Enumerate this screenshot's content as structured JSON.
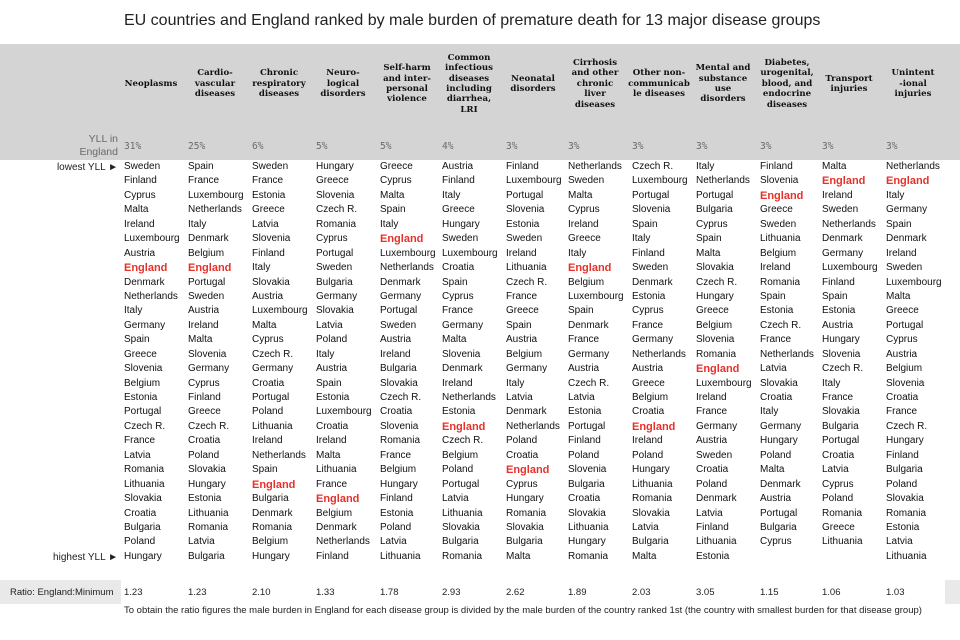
{
  "title": "EU countries and England ranked by male burden of premature death for 13 major disease groups",
  "yll_label_line1": "YLL in",
  "yll_label_line2": "England",
  "lowest_label": "lowest YLL ►",
  "highest_label": "highest YLL ►",
  "ratio_label": "Ratio: England:Minimum",
  "footnote": "To obtain the ratio figures the male burden in England for each disease group is divided by the male burden of the country ranked 1st (the country with smallest burden for that disease group)",
  "highlight_country": "England",
  "columns": [
    {
      "header": [
        "Neoplasms"
      ],
      "yll": "31%",
      "ratio": "1.23",
      "countries": [
        "Sweden",
        "Finland",
        "Cyprus",
        "Malta",
        "Ireland",
        "Luxembourg",
        "Austria",
        "England",
        "Denmark",
        "Netherlands",
        "Italy",
        "Germany",
        "Spain",
        "Greece",
        "Slovenia",
        "Belgium",
        "Estonia",
        "Portugal",
        "Czech R.",
        "France",
        "Latvia",
        "Romania",
        "Lithuania",
        "Slovakia",
        "Croatia",
        "Bulgaria",
        "Poland",
        "Hungary"
      ]
    },
    {
      "header": [
        "Cardio-",
        "vascular",
        "diseases"
      ],
      "yll": "25%",
      "ratio": "1.23",
      "countries": [
        "Spain",
        "France",
        "Luxembourg",
        "Netherlands",
        "Italy",
        "Denmark",
        "Belgium",
        "England",
        "Portugal",
        "Sweden",
        "Austria",
        "Ireland",
        "Malta",
        "Slovenia",
        "Germany",
        "Cyprus",
        "Finland",
        "Greece",
        "Czech R.",
        "Croatia",
        "Poland",
        "Slovakia",
        "Hungary",
        "Estonia",
        "Lithuania",
        "Romania",
        "Latvia",
        "Bulgaria"
      ]
    },
    {
      "header": [
        "Chronic",
        "respiratory",
        "diseases"
      ],
      "yll": "6%",
      "ratio": "2.10",
      "countries": [
        "Sweden",
        "France",
        "Estonia",
        "Greece",
        "Latvia",
        "Slovenia",
        "Finland",
        "Italy",
        "Slovakia",
        "Austria",
        "Luxembourg",
        "Malta",
        "Cyprus",
        "Czech R.",
        "Germany",
        "Croatia",
        "Portugal",
        "Poland",
        "Lithuania",
        "Ireland",
        "Netherlands",
        "Spain",
        "England",
        "Bulgaria",
        "Denmark",
        "Romania",
        "Belgium",
        "Hungary"
      ]
    },
    {
      "header": [
        "Neuro-",
        "logical",
        "disorders"
      ],
      "yll": "5%",
      "ratio": "1.33",
      "countries": [
        "Hungary",
        "Greece",
        "Slovenia",
        "Czech R.",
        "Romania",
        "Cyprus",
        "Portugal",
        "Sweden",
        "Bulgaria",
        "Germany",
        "Slovakia",
        "Latvia",
        "Poland",
        "Italy",
        "Austria",
        "Spain",
        "Estonia",
        "Luxembourg",
        "Croatia",
        "Ireland",
        "Malta",
        "Lithuania",
        "France",
        "England",
        "Belgium",
        "Denmark",
        "Netherlands",
        "Finland"
      ]
    },
    {
      "header": [
        "Self-harm",
        "and inter-",
        "personal",
        "violence"
      ],
      "yll": "5%",
      "ratio": "1.78",
      "countries": [
        "Greece",
        "Cyprus",
        "Malta",
        "Spain",
        "Italy",
        "England",
        "Luxembourg",
        "Netherlands",
        "Denmark",
        "Germany",
        "Portugal",
        "Sweden",
        "Austria",
        "Ireland",
        "Bulgaria",
        "Slovakia",
        "Czech R.",
        "Croatia",
        "Slovenia",
        "Romania",
        "France",
        "Belgium",
        "Hungary",
        "Finland",
        "Estonia",
        "Poland",
        "Latvia",
        "Lithuania"
      ]
    },
    {
      "header": [
        "Common",
        "infectious",
        "diseases",
        "including",
        "diarrhea,",
        "LRI"
      ],
      "yll": "4%",
      "ratio": "2.93",
      "countries": [
        "Austria",
        "Finland",
        "Italy",
        "Greece",
        "Hungary",
        "Sweden",
        "Luxembourg",
        "Croatia",
        "Spain",
        "Cyprus",
        "France",
        "Germany",
        "Malta",
        "Slovenia",
        "Denmark",
        "Ireland",
        "Netherlands",
        "Estonia",
        "England",
        "Czech R.",
        "Belgium",
        "Poland",
        "Portugal",
        "Latvia",
        "Lithuania",
        "Slovakia",
        "Bulgaria",
        "Romania"
      ]
    },
    {
      "header": [
        "Neonatal",
        "disorders"
      ],
      "yll": "3%",
      "ratio": "2.62",
      "countries": [
        "Finland",
        "Luxembourg",
        "Portugal",
        "Slovenia",
        "Estonia",
        "Sweden",
        "Ireland",
        "Lithuania",
        "Czech R.",
        "France",
        "Greece",
        "Spain",
        "Austria",
        "Belgium",
        "Germany",
        "Italy",
        "Latvia",
        "Denmark",
        "Netherlands",
        "Poland",
        "Croatia",
        "England",
        "Cyprus",
        "Hungary",
        "Romania",
        "Slovakia",
        "Bulgaria",
        "Malta"
      ]
    },
    {
      "header": [
        "Cirrhosis",
        "and other",
        "chronic",
        "liver",
        "diseases"
      ],
      "yll": "3%",
      "ratio": "1.89",
      "countries": [
        "Netherlands",
        "Sweden",
        "Malta",
        "Cyprus",
        "Ireland",
        "Greece",
        "Italy",
        "England",
        "Belgium",
        "Luxembourg",
        "Spain",
        "Denmark",
        "France",
        "Germany",
        "Austria",
        "Czech R.",
        "Latvia",
        "Estonia",
        "Portugal",
        "Finland",
        "Poland",
        "Slovenia",
        "Bulgaria",
        "Croatia",
        "Slovakia",
        "Lithuania",
        "Hungary",
        "Romania"
      ]
    },
    {
      "header": [
        "Other non-",
        "communicab",
        "le diseases"
      ],
      "yll": "3%",
      "ratio": "2.03",
      "countries": [
        "Czech R.",
        "Luxembourg",
        "Portugal",
        "Slovenia",
        "Spain",
        "Italy",
        "Finland",
        "Sweden",
        "Denmark",
        "Estonia",
        "Cyprus",
        "France",
        "Germany",
        "Netherlands",
        "Austria",
        "Greece",
        "Belgium",
        "Croatia",
        "England",
        "Ireland",
        "Poland",
        "Hungary",
        "Lithuania",
        "Romania",
        "Slovakia",
        "Latvia",
        "Bulgaria",
        "Malta"
      ]
    },
    {
      "header": [
        "Mental and",
        "substance",
        "use",
        "disorders"
      ],
      "yll": "3%",
      "ratio": "3.05",
      "countries": [
        "Italy",
        "Netherlands",
        "Portugal",
        "Bulgaria",
        "Cyprus",
        "Spain",
        "Malta",
        "Slovakia",
        "Czech R.",
        "Hungary",
        "Greece",
        "Belgium",
        "Slovenia",
        "Romania",
        "England",
        "Luxembourg",
        "Ireland",
        "France",
        "Germany",
        "Austria",
        "Sweden",
        "Croatia",
        "Poland",
        "Denmark",
        "Latvia",
        "Finland",
        "Lithuania",
        "Estonia"
      ]
    },
    {
      "header": [
        "Diabetes,",
        "urogenital,",
        "blood, and",
        "endocrine",
        "diseases"
      ],
      "yll": "3%",
      "ratio": "1.15",
      "countries": [
        "Finland",
        "Slovenia",
        "England",
        "Greece",
        "Sweden",
        "Lithuania",
        "Belgium",
        "Ireland",
        "Romania",
        "Spain",
        "Estonia",
        "Czech R.",
        "France",
        "Netherlands",
        "Latvia",
        "Slovakia",
        "Croatia",
        "Italy",
        "Germany",
        "Hungary",
        "Poland",
        "Malta",
        "Denmark",
        "Austria",
        "Portugal",
        "Bulgaria",
        "Cyprus"
      ]
    },
    {
      "header": [
        "Transport",
        "injuries"
      ],
      "yll": "3%",
      "ratio": "1.06",
      "countries": [
        "Malta",
        "England",
        "Ireland",
        "Sweden",
        "Netherlands",
        "Denmark",
        "Germany",
        "Luxembourg",
        "Finland",
        "Spain",
        "Estonia",
        "Austria",
        "Hungary",
        "Slovenia",
        "Czech R.",
        "Italy",
        "France",
        "Slovakia",
        "Bulgaria",
        "Portugal",
        "Croatia",
        "Latvia",
        "Cyprus",
        "Poland",
        "Romania",
        "Greece",
        "Lithuania"
      ]
    },
    {
      "header": [
        "Unintent",
        "-ional",
        "injuries"
      ],
      "yll": "3%",
      "ratio": "1.03",
      "countries": [
        "Netherlands",
        "England",
        "Italy",
        "Germany",
        "Spain",
        "Denmark",
        "Ireland",
        "Sweden",
        "Luxembourg",
        "Malta",
        "Greece",
        "Portugal",
        "Cyprus",
        "Austria",
        "Belgium",
        "Slovenia",
        "Croatia",
        "France",
        "Czech R.",
        "Hungary",
        "Finland",
        "Bulgaria",
        "Poland",
        "Slovakia",
        "Romania",
        "Estonia",
        "Latvia",
        "Lithuania"
      ]
    }
  ]
}
